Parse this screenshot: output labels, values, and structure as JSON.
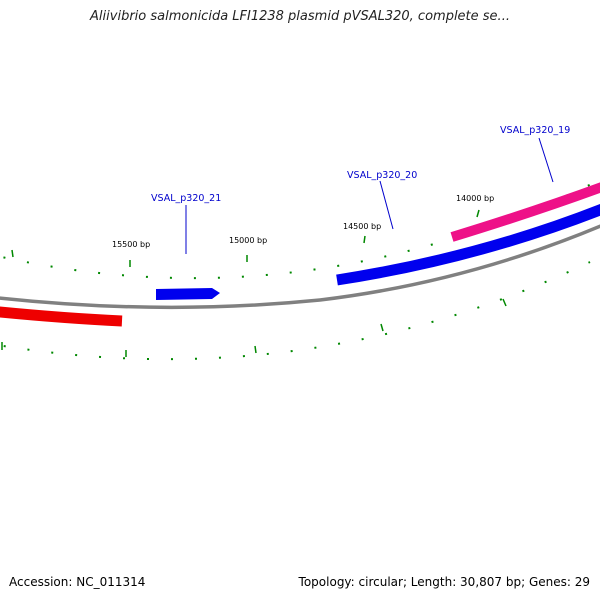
{
  "title": "Aliivibrio salmonicida LFI1238 plasmid pVSAL320, complete se...",
  "footer": {
    "accession": "Accession: NC_011314",
    "summary": "Topology: circular; Length: 30,807 bp; Genes: 29"
  },
  "bp_labels": [
    "15500 bp",
    "15000 bp",
    "14500 bp",
    "14000 bp"
  ],
  "gene_labels": [
    "VSAL_p320_21",
    "VSAL_p320_20",
    "VSAL_p320_19"
  ],
  "colors": {
    "backbone": "#808080",
    "forward_gene": "#0000ee",
    "reverse_gene": "#ee0000",
    "highlight_gene": "#ee1188",
    "tick": "#006600",
    "label": "#0000cc"
  }
}
